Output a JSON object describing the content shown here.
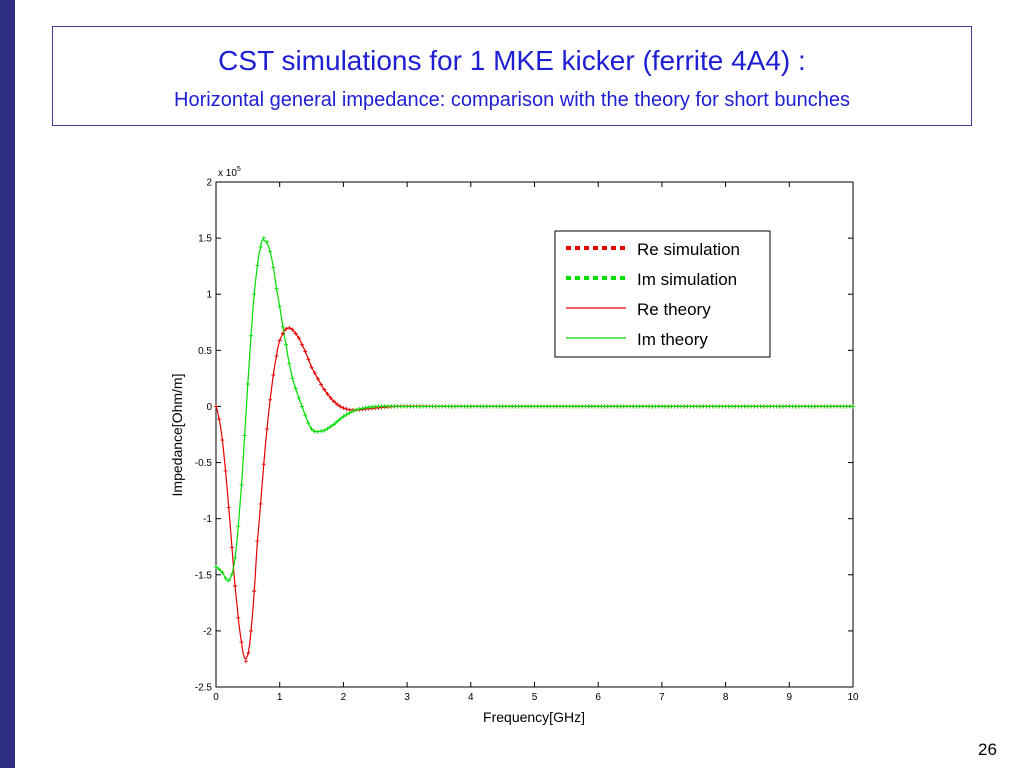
{
  "slide": {
    "title": "CST simulations for 1 MKE kicker (ferrite 4A4) :",
    "subtitle": "Horizontal general impedance: comparison with the theory for short bunches",
    "page_number": "26"
  },
  "colors": {
    "title": "#1e1ed2",
    "sidebar": "#2d2e83",
    "re": "#e60000",
    "im": "#00dd00"
  },
  "chart_data": {
    "type": "line",
    "title": "",
    "xlabel": "Frequency[GHz]",
    "ylabel": "Impedance[Ohm/m]",
    "y_multiplier_label": "x 10",
    "y_multiplier_exponent": "5",
    "xlim": [
      0,
      10
    ],
    "ylim": [
      -2.5,
      2
    ],
    "x_ticks": [
      "0",
      "1",
      "2",
      "3",
      "4",
      "5",
      "6",
      "7",
      "8",
      "9",
      "10"
    ],
    "y_ticks": [
      "2",
      "1.5",
      "1",
      "0.5",
      "0",
      "-0.5",
      "-1",
      "-1.5",
      "-2",
      "-2.5"
    ],
    "legend_position": "top-right",
    "grid": false,
    "series": [
      {
        "name": "Re simulation",
        "style": "dotted",
        "color": "#e60000",
        "x": [
          0,
          0.1,
          0.2,
          0.3,
          0.4,
          0.47,
          0.55,
          0.65,
          0.8,
          0.95,
          1.05,
          1.15,
          1.25,
          1.35,
          1.5,
          1.7,
          1.9,
          2.1,
          2.4,
          2.8,
          3.5,
          5,
          7,
          10
        ],
        "y": [
          0,
          -0.3,
          -0.9,
          -1.6,
          -2.1,
          -2.27,
          -2.0,
          -1.2,
          -0.2,
          0.45,
          0.65,
          0.7,
          0.65,
          0.55,
          0.35,
          0.15,
          0.02,
          -0.03,
          -0.02,
          0,
          0,
          0,
          0,
          0
        ]
      },
      {
        "name": "Im simulation",
        "style": "dotted",
        "color": "#00dd00",
        "x": [
          0,
          0.1,
          0.2,
          0.3,
          0.4,
          0.5,
          0.6,
          0.7,
          0.75,
          0.85,
          0.95,
          1.1,
          1.2,
          1.35,
          1.5,
          1.65,
          1.8,
          2.0,
          2.2,
          2.5,
          3.0,
          5,
          7,
          10
        ],
        "y": [
          -1.43,
          -1.48,
          -1.55,
          -1.35,
          -0.7,
          0.2,
          1.0,
          1.42,
          1.5,
          1.38,
          1.05,
          0.55,
          0.25,
          0.0,
          -0.2,
          -0.22,
          -0.18,
          -0.09,
          -0.03,
          0,
          0,
          0,
          0,
          0
        ]
      },
      {
        "name": "Re theory",
        "style": "solid",
        "color": "#e60000",
        "x": [
          0,
          0.1,
          0.2,
          0.3,
          0.4,
          0.47,
          0.55,
          0.65,
          0.8,
          0.95,
          1.05,
          1.15,
          1.25,
          1.35,
          1.5,
          1.7,
          1.9,
          2.1,
          2.4,
          2.8,
          3.5,
          5,
          7,
          10
        ],
        "y": [
          0,
          -0.3,
          -0.9,
          -1.6,
          -2.1,
          -2.25,
          -2.0,
          -1.2,
          -0.2,
          0.45,
          0.65,
          0.7,
          0.65,
          0.55,
          0.35,
          0.15,
          0.02,
          -0.03,
          -0.02,
          0,
          0,
          0,
          0,
          0
        ]
      },
      {
        "name": "Im theory",
        "style": "solid",
        "color": "#00dd00",
        "x": [
          0,
          0.1,
          0.2,
          0.3,
          0.4,
          0.5,
          0.6,
          0.7,
          0.75,
          0.85,
          0.95,
          1.1,
          1.2,
          1.35,
          1.5,
          1.65,
          1.8,
          2.0,
          2.2,
          2.5,
          3.0,
          5,
          7,
          10
        ],
        "y": [
          -1.43,
          -1.48,
          -1.55,
          -1.35,
          -0.7,
          0.2,
          1.0,
          1.42,
          1.48,
          1.38,
          1.05,
          0.55,
          0.25,
          0.0,
          -0.2,
          -0.22,
          -0.18,
          -0.09,
          -0.03,
          0,
          0,
          0,
          0,
          0
        ]
      }
    ]
  }
}
